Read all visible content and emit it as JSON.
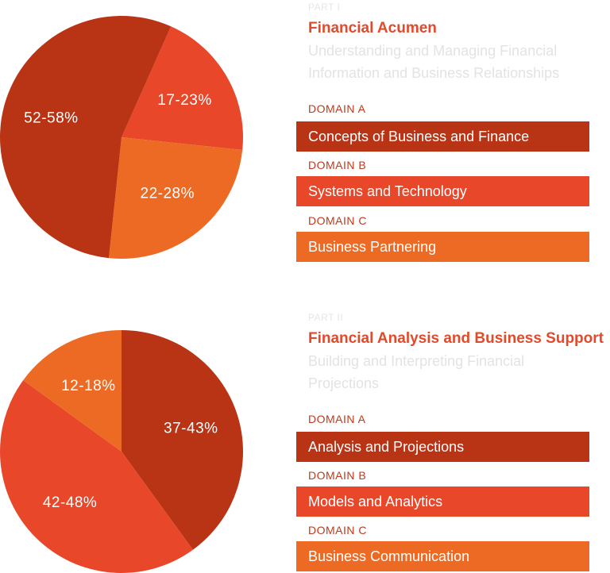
{
  "colors": {
    "dark": "#b93315",
    "red": "#e8472a",
    "orange": "#ec6a23",
    "title": "#e24a2b",
    "domain_label": "#c0391a"
  },
  "parts": [
    {
      "part_label": "PART I",
      "title": "Financial Acumen",
      "subtitle": "Understanding and Managing Financial Information and Business Relationships",
      "domains": [
        {
          "label": "DOMAIN A",
          "name": "Concepts of Business and Finance",
          "color": "dark"
        },
        {
          "label": "DOMAIN B",
          "name": "Systems and Technology",
          "color": "red"
        },
        {
          "label": "DOMAIN C",
          "name": "Business Partnering",
          "color": "orange"
        }
      ]
    },
    {
      "part_label": "PART II",
      "title": "Financial Analysis and Business Support",
      "subtitle": "Building and Interpreting Financial Projections",
      "domains": [
        {
          "label": "DOMAIN A",
          "name": "Analysis and Projections",
          "color": "dark"
        },
        {
          "label": "DOMAIN B",
          "name": "Models and Analytics",
          "color": "red"
        },
        {
          "label": "DOMAIN C",
          "name": "Business Communication",
          "color": "orange"
        }
      ]
    }
  ],
  "chart_data": [
    {
      "type": "pie",
      "start_angle_deg": -66,
      "slices": [
        {
          "label": "17-23%",
          "value": 20,
          "color": "red"
        },
        {
          "label": "22-28%",
          "value": 25,
          "color": "orange"
        },
        {
          "label": "52-58%",
          "value": 55,
          "color": "dark"
        }
      ]
    },
    {
      "type": "pie",
      "start_angle_deg": -90,
      "slices": [
        {
          "label": "37-43%",
          "value": 40,
          "color": "dark"
        },
        {
          "label": "42-48%",
          "value": 45,
          "color": "red"
        },
        {
          "label": "12-18%",
          "value": 15,
          "color": "orange"
        }
      ]
    }
  ]
}
